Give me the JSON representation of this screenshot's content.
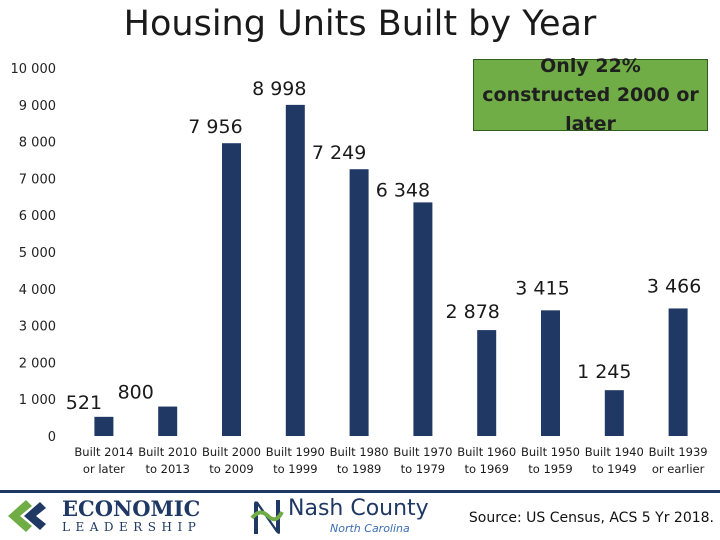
{
  "chart_data": {
    "type": "bar",
    "title": "Housing Units Built by Year",
    "categories": [
      [
        "Built 2014",
        "or later"
      ],
      [
        "Built 2010",
        "to 2013"
      ],
      [
        "Built 2000",
        "to 2009"
      ],
      [
        "Built 1990",
        "to 1999"
      ],
      [
        "Built 1980",
        "to 1989"
      ],
      [
        "Built 1970",
        "to 1979"
      ],
      [
        "Built 1960",
        "to 1969"
      ],
      [
        "Built 1950",
        "to 1959"
      ],
      [
        "Built 1940",
        "to 1949"
      ],
      [
        "Built 1939",
        "or earlier"
      ]
    ],
    "values": [
      521,
      800,
      7956,
      8998,
      7249,
      6348,
      2878,
      3415,
      1245,
      3466
    ],
    "value_labels": [
      "521",
      "800",
      "7 956",
      "8 998",
      "7 249",
      "6 348",
      "2 878",
      "3 415",
      "1 245",
      "3 466"
    ],
    "ylim": [
      0,
      10000
    ],
    "yticks": [
      0,
      1000,
      2000,
      3000,
      4000,
      5000,
      6000,
      7000,
      8000,
      9000,
      10000
    ],
    "ytick_labels": [
      "0",
      "1 000",
      "2 000",
      "3 000",
      "4 000",
      "5 000",
      "6 000",
      "7 000",
      "8 000",
      "9 000",
      "10 000"
    ],
    "xlabel": "",
    "ylabel": "",
    "grid": false,
    "bar_color": "#203864"
  },
  "callout": {
    "text": "Only 22% constructed 2000 or later",
    "color": "#70ad47"
  },
  "logos": {
    "economic_leadership_top": "ECONOMIC",
    "economic_leadership_bottom": "LEADERSHIP",
    "nash_county_top": "Nash County",
    "nash_county_bottom": "North Carolina"
  },
  "source": "Source: US Census, ACS 5 Yr 2018."
}
